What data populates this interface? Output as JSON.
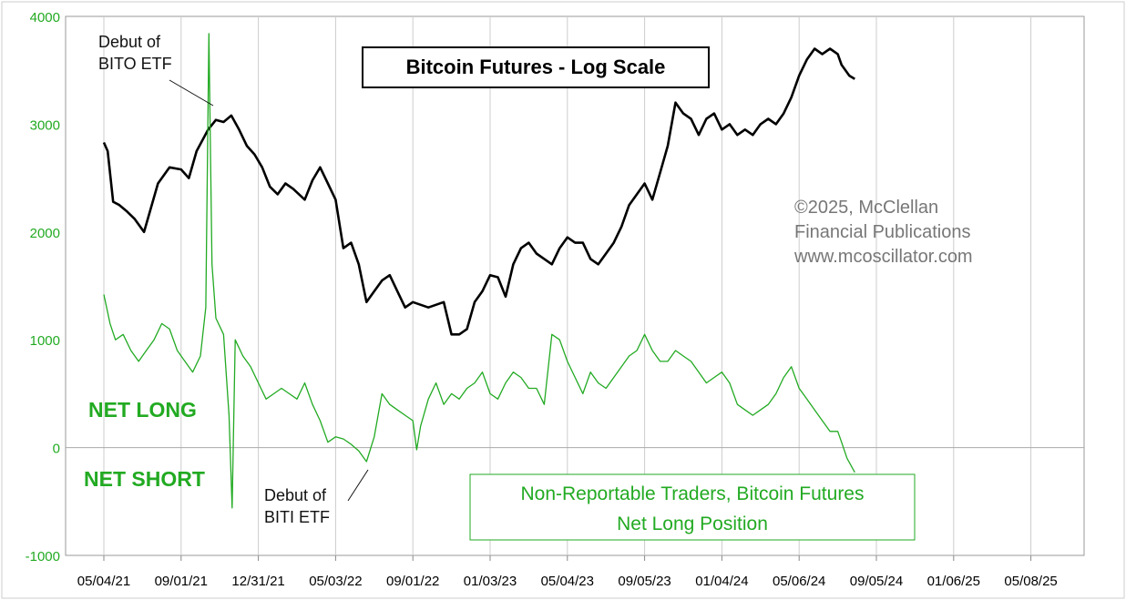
{
  "chart_data": {
    "type": "line",
    "title": "Bitcoin Futures - Log Scale",
    "copyright_lines": [
      "©2025, McClellan",
      "Financial Publications",
      "www.mcoscillator.com"
    ],
    "ylim": [
      -1000,
      4000
    ],
    "yticks": [
      "4000",
      "3000",
      "2000",
      "1000",
      "0",
      "-1000"
    ],
    "xticks": [
      "05/04/21",
      "09/01/21",
      "12/31/21",
      "05/03/22",
      "09/01/22",
      "01/03/23",
      "05/04/23",
      "09/05/23",
      "01/04/24",
      "05/06/24",
      "09/05/24",
      "01/06/25",
      "05/08/25"
    ],
    "zone_labels": {
      "net_long": "NET LONG",
      "net_short": "NET SHORT"
    },
    "annotations": {
      "bito": [
        "Debut of",
        "BITO ETF"
      ],
      "biti": [
        "Debut of",
        "BITI ETF"
      ]
    },
    "legend_lines": [
      "Non-Reportable Traders, Bitcoin Futures",
      "Net Long Position"
    ],
    "colors": {
      "price": "#000000",
      "position": "#22aa22",
      "grid": "#cccccc",
      "zero_line": "#aaaaaa"
    },
    "series": [
      {
        "values_note": "",
        "points": [
          [
            0.0,
            2830
          ],
          [
            0.05,
            2750
          ],
          [
            0.12,
            2280
          ],
          [
            0.2,
            2250
          ],
          [
            0.3,
            2190
          ],
          [
            0.4,
            2120
          ],
          [
            0.52,
            2000
          ],
          [
            0.6,
            2200
          ],
          [
            0.7,
            2450
          ],
          [
            0.85,
            2600
          ],
          [
            1.0,
            2580
          ],
          [
            1.1,
            2500
          ],
          [
            1.2,
            2750
          ],
          [
            1.35,
            2950
          ],
          [
            1.45,
            3040
          ],
          [
            1.55,
            3020
          ],
          [
            1.65,
            3080
          ],
          [
            1.75,
            2950
          ],
          [
            1.85,
            2800
          ],
          [
            1.95,
            2720
          ],
          [
            2.05,
            2600
          ],
          [
            2.15,
            2420
          ],
          [
            2.25,
            2350
          ],
          [
            2.35,
            2450
          ],
          [
            2.45,
            2400
          ],
          [
            2.6,
            2300
          ],
          [
            2.7,
            2480
          ],
          [
            2.8,
            2600
          ],
          [
            2.9,
            2450
          ],
          [
            3.0,
            2300
          ],
          [
            3.1,
            1850
          ],
          [
            3.2,
            1900
          ],
          [
            3.3,
            1700
          ],
          [
            3.4,
            1350
          ],
          [
            3.5,
            1450
          ],
          [
            3.6,
            1550
          ],
          [
            3.7,
            1600
          ],
          [
            3.8,
            1450
          ],
          [
            3.9,
            1300
          ],
          [
            4.0,
            1350
          ],
          [
            4.2,
            1300
          ],
          [
            4.4,
            1350
          ],
          [
            4.5,
            1050
          ],
          [
            4.6,
            1050
          ],
          [
            4.7,
            1100
          ],
          [
            4.8,
            1350
          ],
          [
            4.9,
            1450
          ],
          [
            5.0,
            1600
          ],
          [
            5.1,
            1580
          ],
          [
            5.2,
            1400
          ],
          [
            5.3,
            1700
          ],
          [
            5.4,
            1850
          ],
          [
            5.5,
            1900
          ],
          [
            5.6,
            1800
          ],
          [
            5.7,
            1750
          ],
          [
            5.8,
            1700
          ],
          [
            5.9,
            1850
          ],
          [
            6.0,
            1950
          ],
          [
            6.1,
            1900
          ],
          [
            6.2,
            1900
          ],
          [
            6.3,
            1750
          ],
          [
            6.4,
            1700
          ],
          [
            6.5,
            1800
          ],
          [
            6.6,
            1900
          ],
          [
            6.7,
            2050
          ],
          [
            6.8,
            2250
          ],
          [
            6.9,
            2350
          ],
          [
            7.0,
            2450
          ],
          [
            7.1,
            2300
          ],
          [
            7.2,
            2550
          ],
          [
            7.3,
            2800
          ],
          [
            7.4,
            3200
          ],
          [
            7.5,
            3100
          ],
          [
            7.6,
            3050
          ],
          [
            7.7,
            2900
          ],
          [
            7.8,
            3050
          ],
          [
            7.9,
            3100
          ],
          [
            8.0,
            2950
          ],
          [
            8.1,
            3000
          ],
          [
            8.2,
            2900
          ],
          [
            8.3,
            2950
          ],
          [
            8.4,
            2900
          ],
          [
            8.5,
            3000
          ],
          [
            8.6,
            3050
          ],
          [
            8.7,
            3000
          ],
          [
            8.8,
            3100
          ],
          [
            8.9,
            3250
          ],
          [
            9.0,
            3450
          ],
          [
            9.1,
            3600
          ],
          [
            9.2,
            3700
          ],
          [
            9.3,
            3650
          ],
          [
            9.4,
            3700
          ],
          [
            9.5,
            3650
          ],
          [
            9.55,
            3550
          ],
          [
            9.65,
            3450
          ],
          [
            9.72,
            3420
          ]
        ]
      },
      {
        "points": [
          [
            0.0,
            1420
          ],
          [
            0.08,
            1150
          ],
          [
            0.15,
            1000
          ],
          [
            0.25,
            1050
          ],
          [
            0.35,
            900
          ],
          [
            0.45,
            800
          ],
          [
            0.55,
            900
          ],
          [
            0.65,
            1000
          ],
          [
            0.75,
            1150
          ],
          [
            0.85,
            1100
          ],
          [
            0.95,
            900
          ],
          [
            1.05,
            800
          ],
          [
            1.15,
            700
          ],
          [
            1.25,
            850
          ],
          [
            1.32,
            1300
          ],
          [
            1.36,
            3840
          ],
          [
            1.4,
            1700
          ],
          [
            1.45,
            1200
          ],
          [
            1.55,
            1050
          ],
          [
            1.62,
            300
          ],
          [
            1.66,
            -560
          ],
          [
            1.7,
            1000
          ],
          [
            1.8,
            850
          ],
          [
            1.9,
            750
          ],
          [
            2.0,
            600
          ],
          [
            2.1,
            450
          ],
          [
            2.2,
            500
          ],
          [
            2.3,
            550
          ],
          [
            2.4,
            500
          ],
          [
            2.5,
            450
          ],
          [
            2.6,
            600
          ],
          [
            2.7,
            400
          ],
          [
            2.8,
            250
          ],
          [
            2.9,
            50
          ],
          [
            3.0,
            100
          ],
          [
            3.1,
            80
          ],
          [
            3.2,
            30
          ],
          [
            3.3,
            -30
          ],
          [
            3.4,
            -130
          ],
          [
            3.5,
            100
          ],
          [
            3.6,
            500
          ],
          [
            3.7,
            400
          ],
          [
            3.8,
            350
          ],
          [
            3.9,
            300
          ],
          [
            4.0,
            250
          ],
          [
            4.05,
            -20
          ],
          [
            4.1,
            200
          ],
          [
            4.2,
            450
          ],
          [
            4.3,
            600
          ],
          [
            4.4,
            400
          ],
          [
            4.5,
            500
          ],
          [
            4.6,
            450
          ],
          [
            4.7,
            550
          ],
          [
            4.8,
            600
          ],
          [
            4.9,
            700
          ],
          [
            5.0,
            500
          ],
          [
            5.1,
            450
          ],
          [
            5.2,
            600
          ],
          [
            5.3,
            700
          ],
          [
            5.4,
            650
          ],
          [
            5.5,
            550
          ],
          [
            5.6,
            550
          ],
          [
            5.7,
            400
          ],
          [
            5.8,
            1050
          ],
          [
            5.9,
            1000
          ],
          [
            6.0,
            800
          ],
          [
            6.1,
            650
          ],
          [
            6.2,
            500
          ],
          [
            6.3,
            700
          ],
          [
            6.4,
            600
          ],
          [
            6.5,
            550
          ],
          [
            6.6,
            650
          ],
          [
            6.7,
            750
          ],
          [
            6.8,
            850
          ],
          [
            6.9,
            900
          ],
          [
            7.0,
            1050
          ],
          [
            7.1,
            900
          ],
          [
            7.2,
            800
          ],
          [
            7.3,
            800
          ],
          [
            7.4,
            900
          ],
          [
            7.5,
            850
          ],
          [
            7.6,
            800
          ],
          [
            7.7,
            700
          ],
          [
            7.8,
            600
          ],
          [
            7.9,
            650
          ],
          [
            8.0,
            700
          ],
          [
            8.1,
            600
          ],
          [
            8.2,
            400
          ],
          [
            8.3,
            350
          ],
          [
            8.4,
            300
          ],
          [
            8.5,
            350
          ],
          [
            8.6,
            400
          ],
          [
            8.7,
            500
          ],
          [
            8.8,
            650
          ],
          [
            8.9,
            750
          ],
          [
            9.0,
            550
          ],
          [
            9.1,
            450
          ],
          [
            9.2,
            350
          ],
          [
            9.3,
            250
          ],
          [
            9.4,
            150
          ],
          [
            9.5,
            150
          ],
          [
            9.55,
            50
          ],
          [
            9.62,
            -100
          ],
          [
            9.72,
            -230
          ]
        ]
      }
    ]
  }
}
